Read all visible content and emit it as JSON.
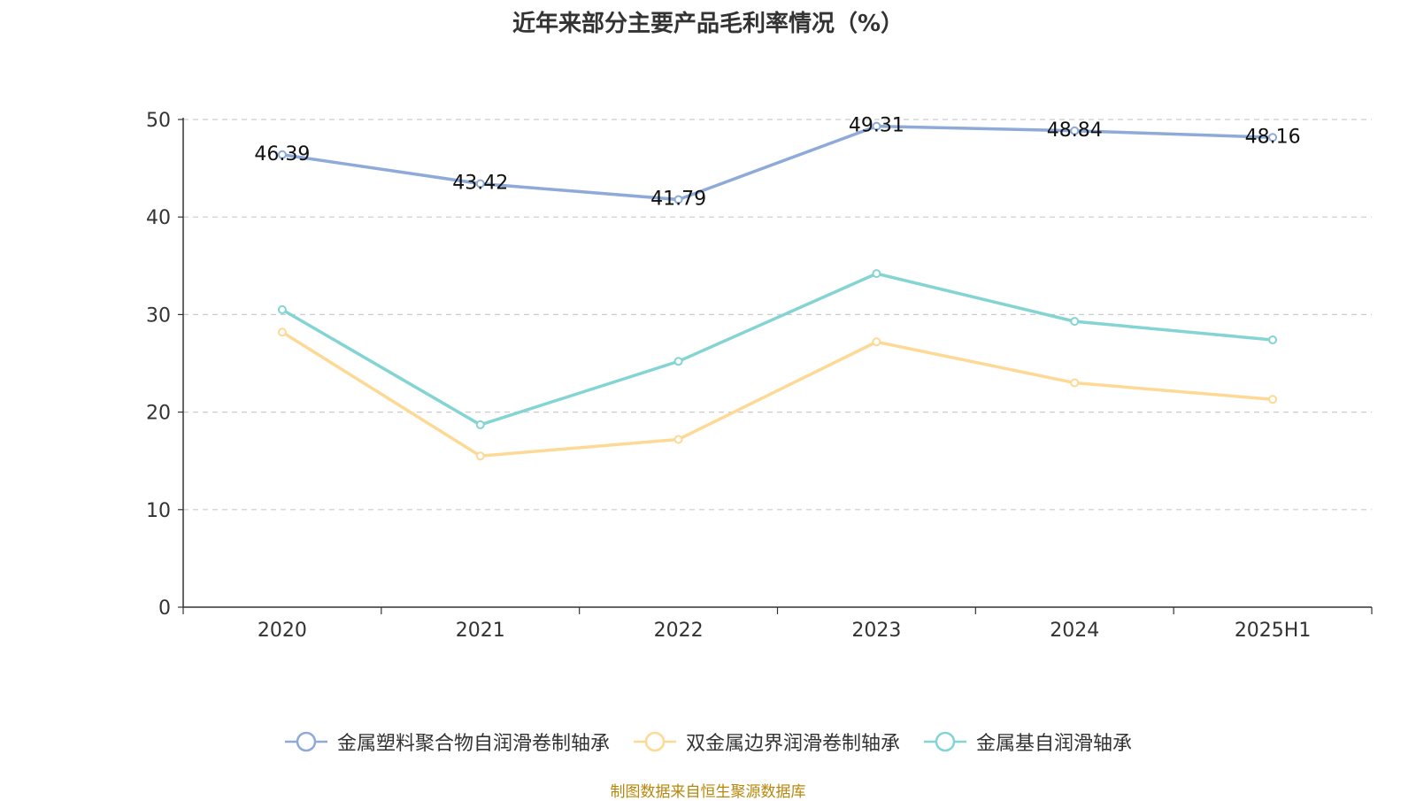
{
  "chart_data": {
    "type": "line",
    "title": "近年来部分主要产品毛利率情况（%）",
    "categories": [
      "2020",
      "2021",
      "2022",
      "2023",
      "2024",
      "2025H1"
    ],
    "ylim": [
      0,
      50
    ],
    "yticks": [
      "0",
      "10",
      "20",
      "30",
      "40",
      "50"
    ],
    "grid": true,
    "legend_position": "bottom",
    "series": [
      {
        "name": "金属塑料聚合物自润滑卷制轴承",
        "color": "#8eaad8",
        "values": [
          46.39,
          43.42,
          41.79,
          49.31,
          48.84,
          48.16
        ],
        "labels": [
          "46.39",
          "43.42",
          "41.79",
          "49.31",
          "48.84",
          "48.16"
        ]
      },
      {
        "name": "双金属边界润滑卷制轴承",
        "color": "#fdd995",
        "values": [
          28.2,
          15.5,
          17.2,
          27.2,
          23.0,
          21.3
        ]
      },
      {
        "name": "金属基自润滑轴承",
        "color": "#84d4d4",
        "values": [
          30.5,
          18.7,
          25.2,
          34.2,
          29.3,
          27.4
        ]
      }
    ]
  },
  "source": "制图数据来自恒生聚源数据库"
}
